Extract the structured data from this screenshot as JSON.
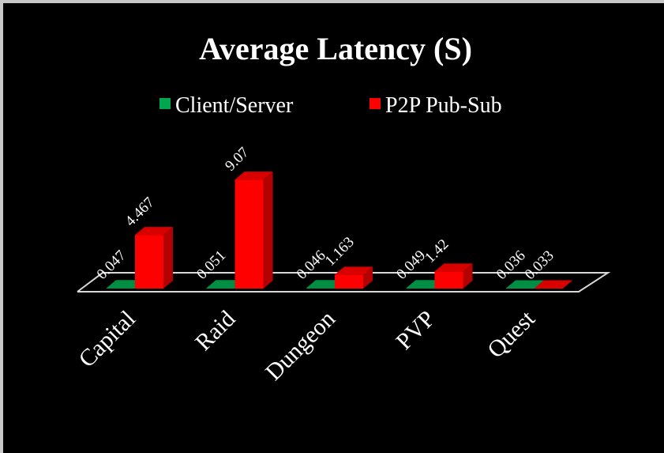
{
  "chart_data": {
    "type": "bar3d",
    "title": "Average Latency (S)",
    "categories": [
      "Capital",
      "Raid",
      "Dungeon",
      "PVP",
      "Quest"
    ],
    "series": [
      {
        "name": "Client/Server",
        "color": "#00a650",
        "values": [
          0.047,
          0.051,
          0.046,
          0.049,
          0.036
        ]
      },
      {
        "name": "P2P Pub-Sub",
        "color": "#ff0000",
        "values": [
          4.467,
          9.07,
          1.163,
          1.42,
          0.033
        ]
      }
    ]
  }
}
